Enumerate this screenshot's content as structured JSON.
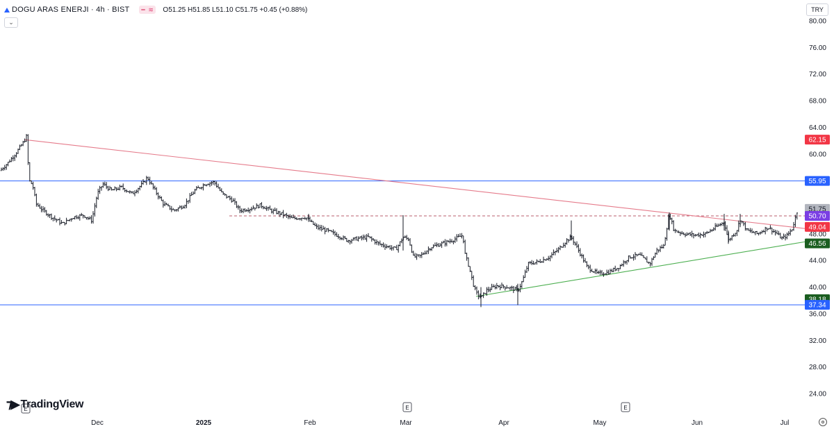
{
  "header": {
    "title": "DOGU ARAS ENERJI · 4h · BIST",
    "ohlc": "O51.25 H51.85 L51.10 C51.75 +0.45 (+0.88%)"
  },
  "currency": "TRY",
  "branding": "TradingView",
  "icons": [
    "exchange-triangle-icon",
    "indicator-chip-icon",
    "collapse-chevron-icon",
    "settings-gear-icon",
    "earnings-marker-icon"
  ],
  "chart_data": {
    "type": "candlestick",
    "timeframe": "4h",
    "ylim": [
      22,
      81
    ],
    "yticks": [
      "80.00",
      "76.00",
      "72.00",
      "68.00",
      "64.00",
      "60.00",
      "56.00",
      "52.00",
      "48.00",
      "44.00",
      "40.00",
      "36.00",
      "32.00",
      "28.00",
      "24.00"
    ],
    "xticks": [
      {
        "label": "Dec",
        "bold": false
      },
      {
        "label": "2025",
        "bold": true
      },
      {
        "label": "Feb",
        "bold": false
      },
      {
        "label": "Mar",
        "bold": false
      },
      {
        "label": "Apr",
        "bold": false
      },
      {
        "label": "May",
        "bold": false
      },
      {
        "label": "Jun",
        "bold": false
      },
      {
        "label": "Jul",
        "bold": false
      }
    ],
    "price_close_path": [
      [
        0,
        57.5
      ],
      [
        10,
        58.5
      ],
      [
        22,
        60.0
      ],
      [
        34,
        61.8
      ],
      [
        38,
        62.6
      ],
      [
        42,
        56.0
      ],
      [
        47,
        55.3
      ],
      [
        52,
        52.5
      ],
      [
        62,
        51.5
      ],
      [
        75,
        50.5
      ],
      [
        90,
        49.5
      ],
      [
        105,
        50.5
      ],
      [
        120,
        50.8
      ],
      [
        132,
        50.0
      ],
      [
        140,
        54.0
      ],
      [
        148,
        55.5
      ],
      [
        160,
        54.5
      ],
      [
        175,
        55.0
      ],
      [
        190,
        54.0
      ],
      [
        205,
        55.5
      ],
      [
        212,
        56.5
      ],
      [
        220,
        55.0
      ],
      [
        235,
        52.5
      ],
      [
        250,
        51.5
      ],
      [
        265,
        52.3
      ],
      [
        280,
        54.5
      ],
      [
        295,
        55.5
      ],
      [
        308,
        55.8
      ],
      [
        320,
        54.0
      ],
      [
        335,
        53.0
      ],
      [
        345,
        51.5
      ],
      [
        360,
        51.8
      ],
      [
        375,
        52.3
      ],
      [
        390,
        51.5
      ],
      [
        405,
        51.0
      ],
      [
        420,
        50.3
      ],
      [
        440,
        50.5
      ],
      [
        455,
        49.0
      ],
      [
        470,
        48.5
      ],
      [
        485,
        47.8
      ],
      [
        500,
        47.0
      ],
      [
        515,
        47.3
      ],
      [
        530,
        47.5
      ],
      [
        545,
        46.5
      ],
      [
        560,
        46.0
      ],
      [
        570,
        45.7
      ],
      [
        580,
        47.5
      ],
      [
        588,
        47.2
      ],
      [
        595,
        44.5
      ],
      [
        605,
        44.7
      ],
      [
        620,
        46.0
      ],
      [
        635,
        46.5
      ],
      [
        650,
        47.0
      ],
      [
        666,
        47.8
      ],
      [
        669,
        45.0
      ],
      [
        675,
        43.0
      ],
      [
        682,
        40.0
      ],
      [
        687,
        38.8
      ],
      [
        693,
        38.5
      ],
      [
        700,
        39.5
      ],
      [
        715,
        40.2
      ],
      [
        730,
        40.0
      ],
      [
        745,
        39.5
      ],
      [
        752,
        41.0
      ],
      [
        760,
        43.5
      ],
      [
        775,
        43.8
      ],
      [
        790,
        44.5
      ],
      [
        805,
        45.8
      ],
      [
        815,
        47.0
      ],
      [
        822,
        47.5
      ],
      [
        830,
        46.0
      ],
      [
        845,
        43.0
      ],
      [
        860,
        42.0
      ],
      [
        875,
        42.2
      ],
      [
        890,
        43.0
      ],
      [
        905,
        44.5
      ],
      [
        920,
        44.8
      ],
      [
        935,
        43.5
      ],
      [
        945,
        45.5
      ],
      [
        955,
        46.2
      ],
      [
        963,
        51.0
      ],
      [
        970,
        48.5
      ],
      [
        985,
        48.0
      ],
      [
        1000,
        47.8
      ],
      [
        1015,
        48.0
      ],
      [
        1030,
        49.0
      ],
      [
        1042,
        49.8
      ],
      [
        1048,
        47.0
      ],
      [
        1060,
        48.5
      ],
      [
        1065,
        50.2
      ],
      [
        1075,
        48.5
      ],
      [
        1090,
        48.0
      ],
      [
        1105,
        49.0
      ],
      [
        1118,
        48.0
      ],
      [
        1125,
        47.3
      ],
      [
        1133,
        47.8
      ],
      [
        1140,
        48.8
      ],
      [
        1148,
        51.75
      ]
    ],
    "earnings_markers": [
      {
        "label": "E"
      },
      {
        "label": "E"
      },
      {
        "label": "E"
      }
    ],
    "trendlines": [
      {
        "name": "descending-resistance",
        "color": "#e57a8a",
        "points": [
          [
            35,
            62.15
          ],
          [
            1158,
            48.8
          ]
        ]
      },
      {
        "name": "ascending-support",
        "color": "#4caf50",
        "points": [
          [
            685,
            38.6
          ],
          [
            1158,
            46.8
          ]
        ]
      }
    ],
    "horizontal_lines": [
      {
        "price": 55.95,
        "color": "#2962ff",
        "style": "solid"
      },
      {
        "price": 37.34,
        "color": "#2962ff",
        "style": "solid"
      },
      {
        "price": 50.7,
        "color": "#b85c6e",
        "style": "dashed"
      }
    ],
    "price_labels": [
      {
        "text": "62.15",
        "price": 62.15,
        "color": "#f23645"
      },
      {
        "text": "55.95",
        "price": 55.95,
        "color": "#2962ff"
      },
      {
        "text": "51.75",
        "price": 51.75,
        "color": "#b2b5be"
      },
      {
        "text": "50.70",
        "price": 50.7,
        "color": "#7b3fe4"
      },
      {
        "text": "49.04",
        "price": 49.04,
        "color": "#f23645"
      },
      {
        "text": "46.56",
        "price": 46.56,
        "color": "#1b5e20"
      },
      {
        "text": "38.18",
        "price": 38.18,
        "color": "#1b5e20"
      },
      {
        "text": "37.34",
        "price": 37.34,
        "color": "#2962ff"
      }
    ]
  }
}
